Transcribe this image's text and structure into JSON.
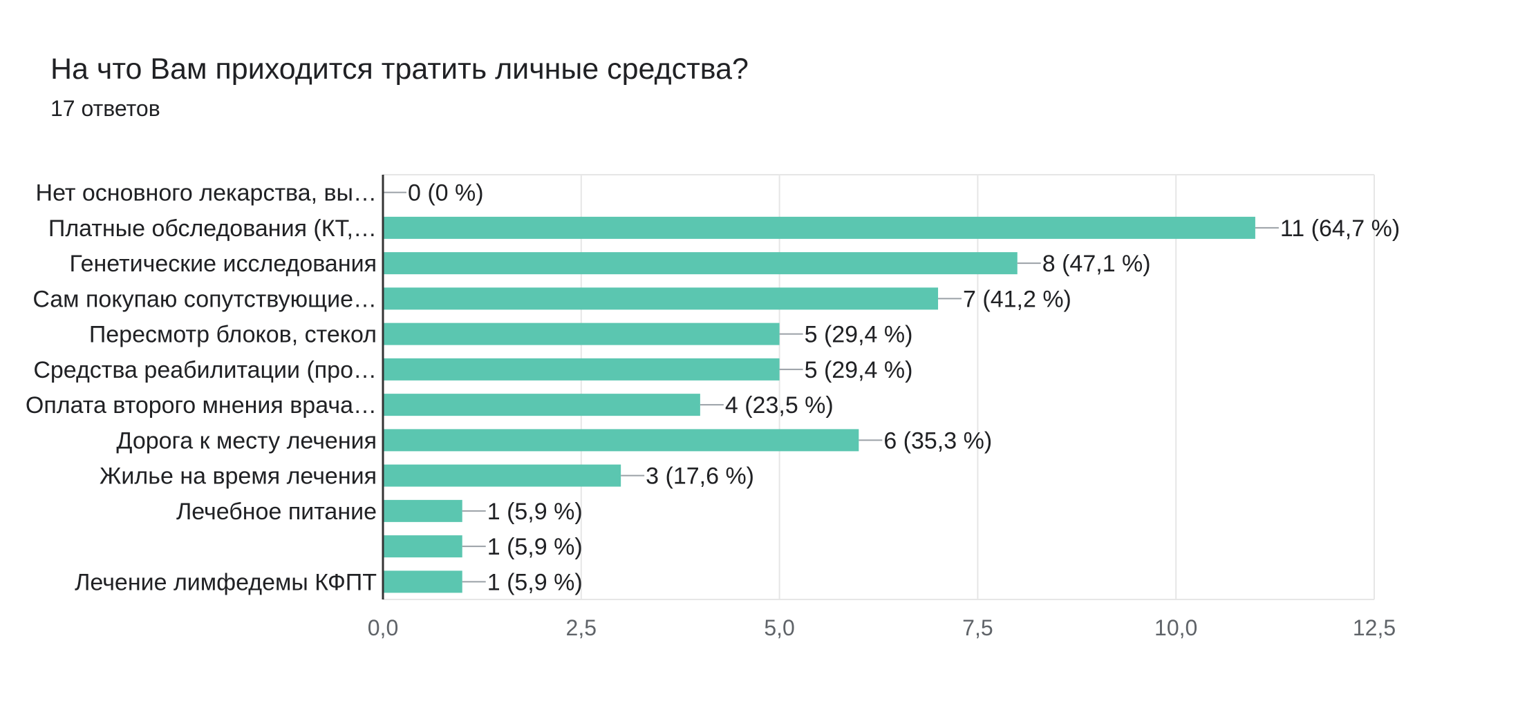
{
  "chart_data": {
    "type": "bar",
    "orientation": "horizontal",
    "title": "На что Вам приходится тратить личные средства?",
    "subtitle": "17 ответов",
    "categories": [
      "Нет основного лекарства, вы…",
      "Платные обследования (КТ,…",
      "Генетические исследования",
      "Сам покупаю сопутствующие…",
      "Пересмотр блоков, стекол",
      "Средства реабилитации (про…",
      "Оплата второго мнения врача…",
      "Дорога к месту лечения",
      "Жилье на время лечения",
      "Лечебное питание",
      "",
      "Лечение лимфедемы КФПТ"
    ],
    "values": [
      0,
      11,
      8,
      7,
      5,
      5,
      4,
      6,
      3,
      1,
      1,
      1
    ],
    "value_labels": [
      "0 (0 %)",
      "11 (64,7 %)",
      "8 (47,1 %)",
      "7 (41,2 %)",
      "5 (29,4 %)",
      "5 (29,4 %)",
      "4 (23,5 %)",
      "6 (35,3 %)",
      "3 (17,6 %)",
      "1 (5,9 %)",
      "1 (5,9 %)",
      "1 (5,9 %)"
    ],
    "xlim": [
      0,
      12.5
    ],
    "xticks": [
      0,
      2.5,
      5,
      7.5,
      10,
      12.5
    ],
    "xtick_labels": [
      "0,0",
      "2,5",
      "5,0",
      "7,5",
      "10,0",
      "12,5"
    ],
    "xlabel": "",
    "ylabel": "",
    "grid": true,
    "legend": "none",
    "colors": {
      "bar": "#5bc6b0",
      "grid": "#e6e6e6",
      "axis": "#333333",
      "leader": "#9aa0a6"
    }
  }
}
